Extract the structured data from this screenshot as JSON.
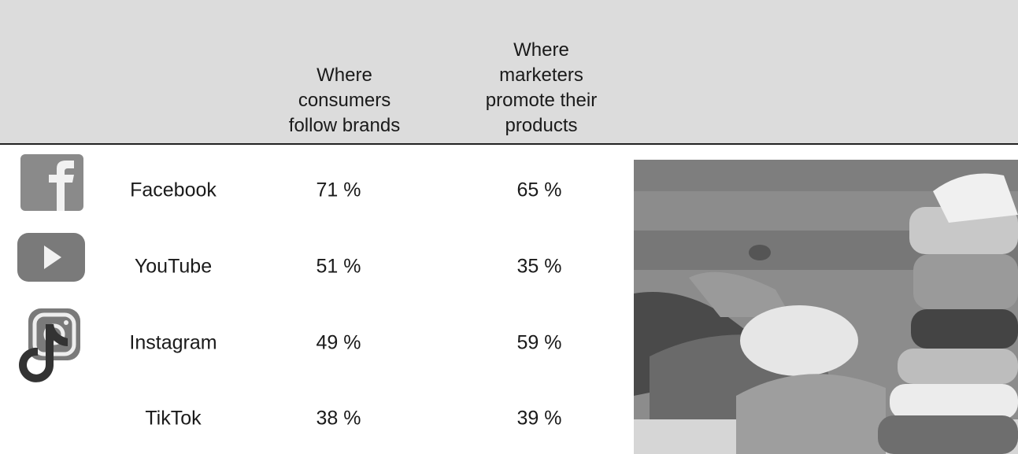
{
  "table": {
    "header": [
      "Where consumers follow brands",
      "Where marketers promote their products"
    ],
    "rows": [
      [
        "Facebook",
        "71 %",
        "65 %"
      ],
      [
        "YouTube",
        "51 %",
        "35 %"
      ],
      [
        "Instagram",
        "49 %",
        "59 %"
      ],
      [
        "TikTok",
        "38 %",
        "39 %"
      ]
    ]
  }
}
